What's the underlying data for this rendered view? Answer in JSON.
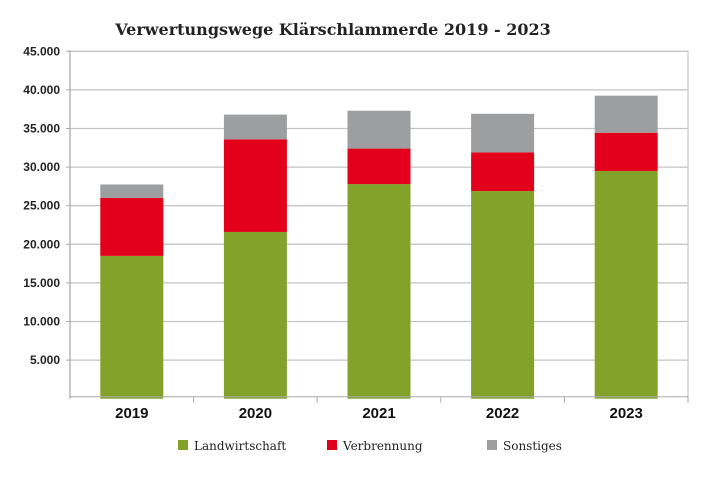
{
  "chart_data": {
    "type": "bar",
    "stacked": true,
    "title": "Verwertungswege Klärschlammerde 2019 - 2023",
    "xlabel": "",
    "ylabel": "",
    "ylim": [
      0,
      45000
    ],
    "yticks": [
      5000,
      10000,
      15000,
      20000,
      25000,
      30000,
      35000,
      40000,
      45000
    ],
    "ytick_labels": [
      "5.000",
      "10.000",
      "15.000",
      "20.000",
      "25.000",
      "30.000",
      "35.000",
      "40.000",
      "45.000"
    ],
    "categories": [
      "2019",
      "2020",
      "2021",
      "2022",
      "2023"
    ],
    "grid": true,
    "legend_position": "bottom",
    "series": [
      {
        "name": "Landwirtschaft",
        "color": "#83a22a",
        "values": [
          18500,
          21600,
          27800,
          26900,
          29500
        ]
      },
      {
        "name": "Verbrennung",
        "color": "#e2001a",
        "values": [
          7500,
          12000,
          4600,
          5000,
          4950
        ]
      },
      {
        "name": "Sonstiges",
        "color": "#9d9e9f",
        "values": [
          1750,
          3200,
          4900,
          5000,
          4800
        ]
      }
    ]
  }
}
